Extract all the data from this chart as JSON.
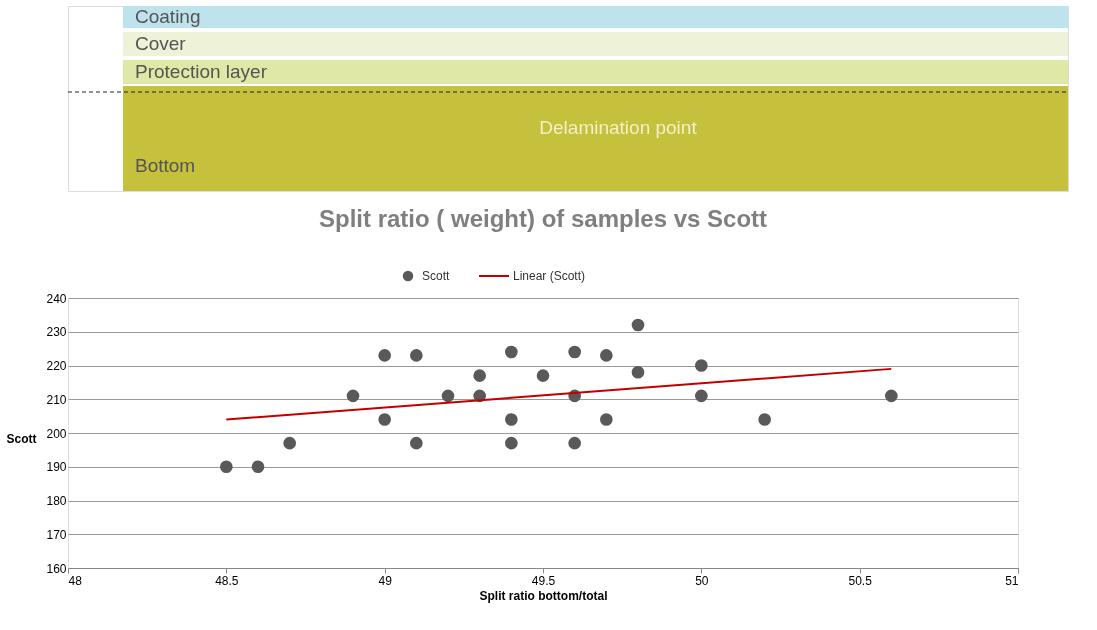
{
  "chart_data": [
    {
      "type": "other",
      "annotations": [
        "Coating",
        "Cover",
        "Protection layer",
        "Delamination point",
        "Bottom"
      ]
    },
    {
      "type": "scatter",
      "title": "Split ratio ( weight) of samples vs Scott",
      "xlabel": "Split ratio bottom/total",
      "ylabel": "Scott",
      "xlim": [
        48,
        51
      ],
      "xticks": [
        {
          "value": 48,
          "label": "48"
        },
        48.5,
        {
          "value": 49,
          "label": "49"
        },
        49.5,
        {
          "value": 50,
          "label": "50"
        },
        50.5,
        {
          "value": 51,
          "label": "51"
        }
      ],
      "ylim": [
        160,
        240
      ],
      "yticks": [
        160,
        170,
        180,
        190,
        200,
        210,
        220,
        230,
        240
      ],
      "grid": "y",
      "legend": "top",
      "marker": "circle",
      "series": [
        {
          "name": "Scott",
          "color": "#595959",
          "x": [
            48.5,
            48.6,
            48.7,
            48.9,
            49,
            49,
            49.1,
            49.1,
            49.2,
            49.3,
            49.3,
            49.4,
            49.4,
            49.4,
            49.5,
            49.6,
            49.6,
            49.6,
            49.7,
            49.7,
            49.8,
            49.8,
            50,
            50,
            50.2,
            50.6
          ],
          "values": [
            190,
            190,
            197,
            211,
            223,
            204,
            223,
            197,
            211,
            217,
            211,
            224,
            204,
            197,
            217,
            224,
            211,
            197,
            223,
            204,
            232,
            218,
            220,
            211,
            204,
            211
          ]
        },
        {
          "name": "Linear (Scott)",
          "type": "line",
          "marker": "none",
          "color": "#c00000",
          "x": [
            48.5,
            50.6
          ],
          "values": [
            204,
            219
          ]
        }
      ]
    }
  ]
}
